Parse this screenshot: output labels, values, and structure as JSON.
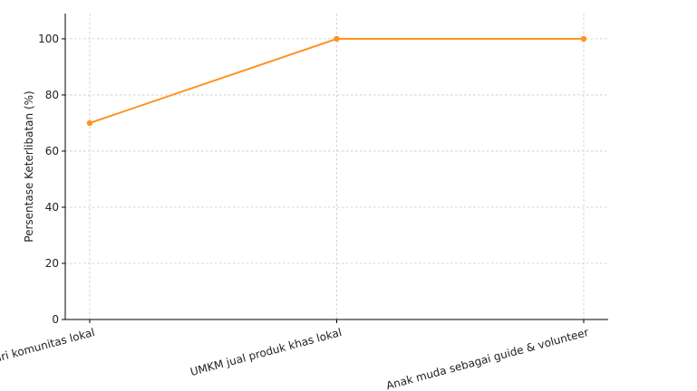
{
  "chart_data": {
    "type": "line",
    "title": "",
    "xlabel": "",
    "ylabel": "Persentase Keterlibatan (%)",
    "categories": [
      "Panitia dari komunitas lokal",
      "UMKM jual produk khas lokal",
      "Anak muda sebagai guide & volunteer"
    ],
    "series": [
      {
        "values": [
          70,
          100,
          100
        ],
        "color": "#ff9320"
      }
    ],
    "ylim": [
      0,
      109
    ],
    "yticks": [
      0,
      20,
      40,
      60,
      80,
      100
    ],
    "grid": true,
    "legend": "none"
  }
}
